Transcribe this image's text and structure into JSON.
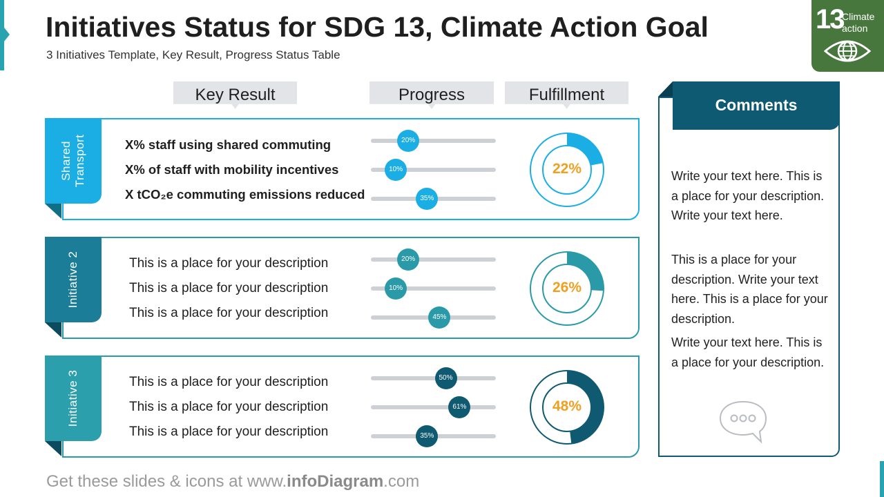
{
  "header": {
    "title": "Initiatives Status for SDG 13, Climate Action Goal",
    "subtitle": "3 Initiatives Template, Key Result, Progress Status Table"
  },
  "sdg_badge": {
    "number": "13",
    "line1": "Climate",
    "line2": "action",
    "color": "#48773e",
    "icon": "eye-globe-icon"
  },
  "columns": {
    "key_result": "Key Result",
    "progress": "Progress",
    "fulfillment": "Fulfillment"
  },
  "initiatives": [
    {
      "label_line1": "Shared",
      "label_line2": "Transport",
      "color": "#1aaee5",
      "results": [
        {
          "text": "X% staff using shared commuting",
          "progress_label": "20%",
          "progress": 0.2
        },
        {
          "text": "X% of staff with mobility incentives",
          "progress_label": "10%",
          "progress": 0.1
        },
        {
          "text": "X tCO₂e commuting emissions reduced",
          "progress_label": "35%",
          "progress": 0.35
        }
      ],
      "fulfillment_label": "22%",
      "fulfillment": 0.22
    },
    {
      "label_line1": "Initiative 2",
      "label_line2": "",
      "color": "#1b7d98",
      "results": [
        {
          "text": "This is a place for your description",
          "progress_label": "20%",
          "progress": 0.2
        },
        {
          "text": "This is a place for your description",
          "progress_label": "10%",
          "progress": 0.1
        },
        {
          "text": "This is a place for your description",
          "progress_label": "45%",
          "progress": 0.45
        }
      ],
      "fulfillment_label": "26%",
      "fulfillment": 0.26
    },
    {
      "label_line1": "Initiative 3",
      "label_line2": "",
      "color": "#2ba0ac",
      "results": [
        {
          "text": "This is a place for your description",
          "progress_label": "50%",
          "progress": 0.5
        },
        {
          "text": "This is a place for your description",
          "progress_label": "61%",
          "progress": 0.61
        },
        {
          "text": "This is a place for your description",
          "progress_label": "35%",
          "progress": 0.35
        }
      ],
      "fulfillment_label": "48%",
      "fulfillment": 0.48
    }
  ],
  "comments": {
    "title": "Comments",
    "paragraphs": [
      "Write your text here. This is a place for your description. Write your text here.",
      "This is a place for your description. Write your text here. This is a place for your description.",
      "Write your text here. This is a place for your description."
    ],
    "icon": "speech-bubble-icon"
  },
  "footer": {
    "prefix": "Get these slides & icons at www.",
    "brand": "infoDiagram",
    "suffix": ".com"
  },
  "colors": {
    "accent_orange": "#f0a020",
    "track": "#cdd1d6",
    "dark_teal": "#0e5a72",
    "init3_knob": "#0f5a70"
  }
}
